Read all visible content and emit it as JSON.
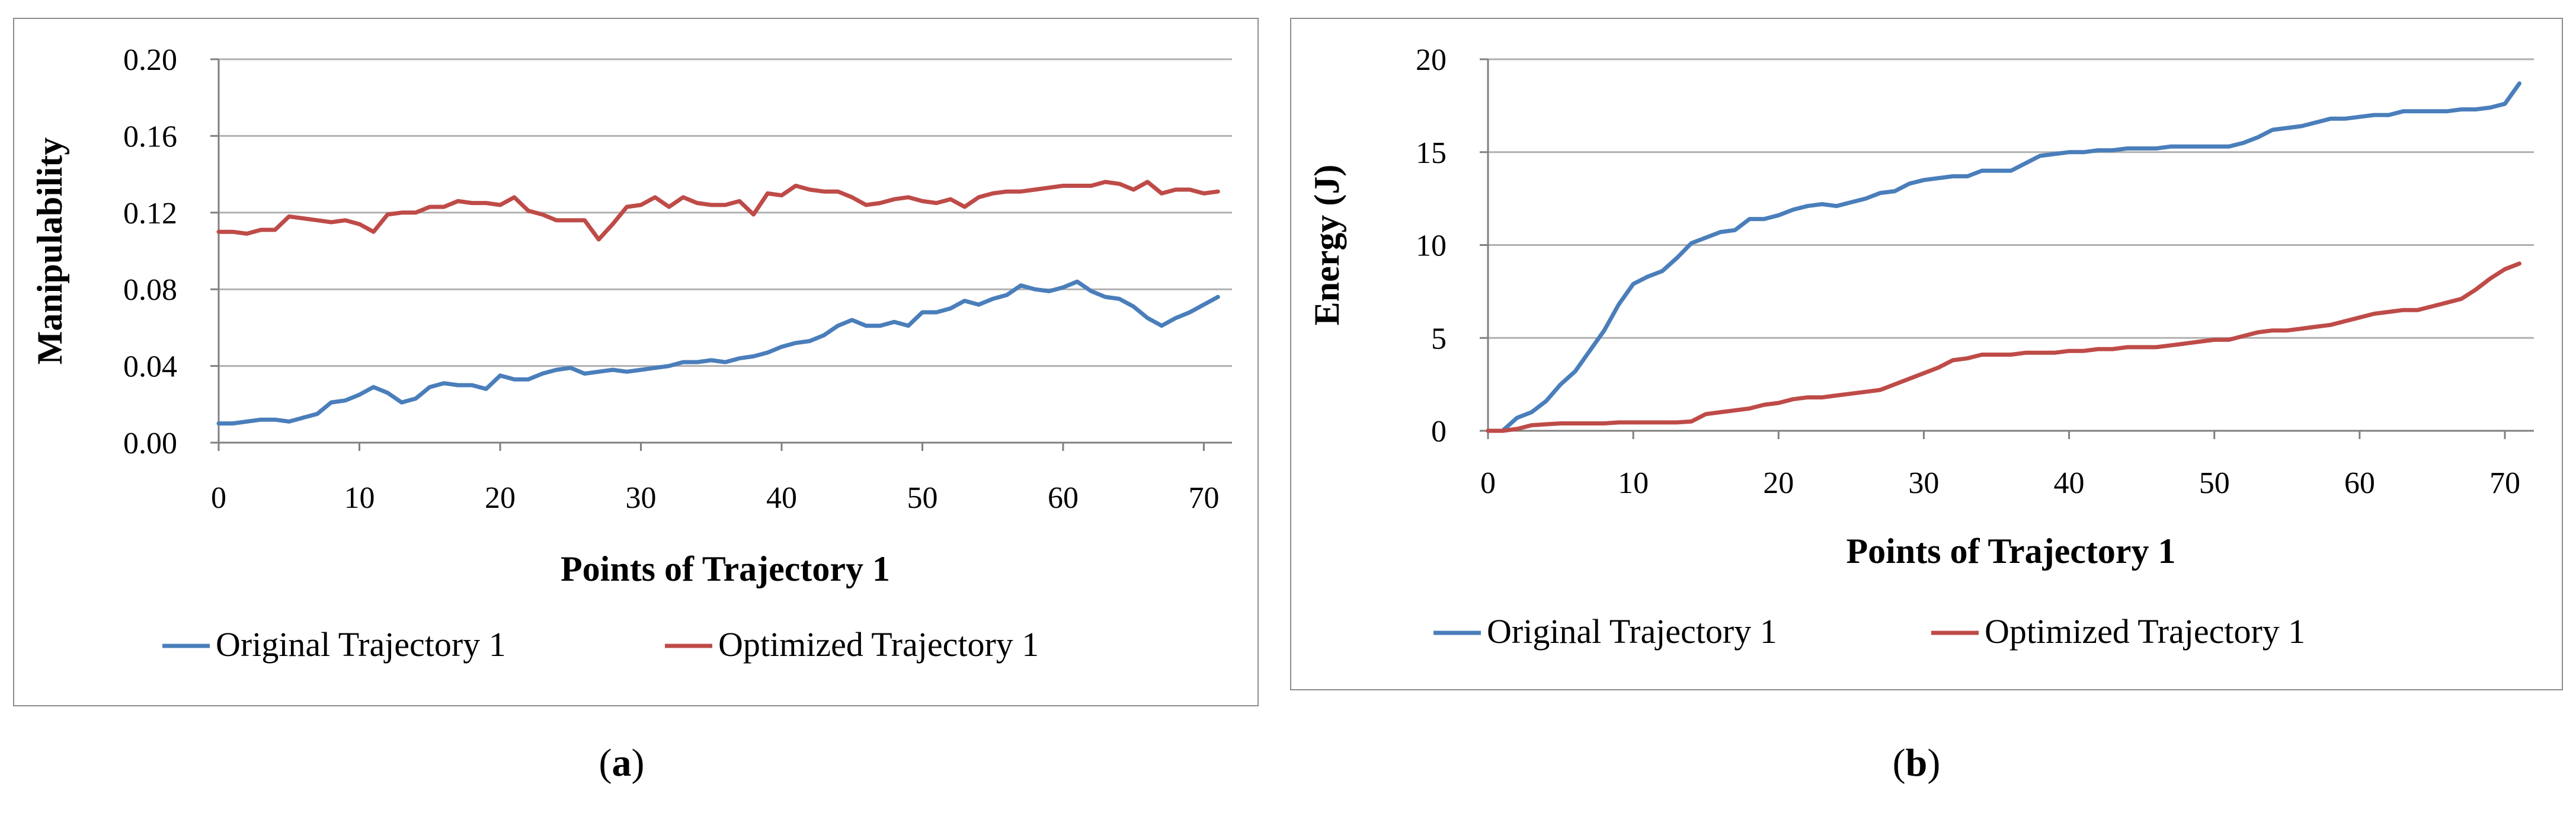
{
  "colors": {
    "original": "#4a7ebb",
    "optimized": "#be4b48",
    "grid": "#b0b0b0",
    "axis": "#808080"
  },
  "captions": {
    "a": "a",
    "b": "b"
  },
  "chart_data": [
    {
      "id": "a",
      "type": "line",
      "title": "",
      "xlabel": "Points of Trajectory 1",
      "ylabel": "Manipulability",
      "xlim": [
        0,
        72
      ],
      "ylim": [
        0,
        0.2
      ],
      "xticks": [
        0,
        10,
        20,
        30,
        40,
        50,
        60,
        70
      ],
      "xtick_labels": [
        "0",
        "10",
        "20",
        "30",
        "40",
        "50",
        "60",
        "70"
      ],
      "yticks": [
        0,
        0.04,
        0.08,
        0.12,
        0.16,
        0.2
      ],
      "ytick_labels": [
        "0.00",
        "0.04",
        "0.08",
        "0.12",
        "0.16",
        "0.20"
      ],
      "grid": "horizontal",
      "legend_position": "bottom",
      "series": [
        {
          "name": "Original Trajectory 1",
          "color": "#4a7ebb",
          "x": [
            0,
            1,
            2,
            3,
            4,
            5,
            6,
            7,
            8,
            9,
            10,
            11,
            12,
            13,
            14,
            15,
            16,
            17,
            18,
            19,
            20,
            21,
            22,
            23,
            24,
            25,
            26,
            27,
            28,
            29,
            30,
            31,
            32,
            33,
            34,
            35,
            36,
            37,
            38,
            39,
            40,
            41,
            42,
            43,
            44,
            45,
            46,
            47,
            48,
            49,
            50,
            51,
            52,
            53,
            54,
            55,
            56,
            57,
            58,
            59,
            60,
            61,
            62,
            63,
            64,
            65,
            66,
            67,
            68,
            69,
            70,
            71
          ],
          "values": [
            0.01,
            0.01,
            0.011,
            0.012,
            0.012,
            0.011,
            0.013,
            0.015,
            0.021,
            0.022,
            0.025,
            0.029,
            0.026,
            0.021,
            0.023,
            0.029,
            0.031,
            0.03,
            0.03,
            0.028,
            0.035,
            0.033,
            0.033,
            0.036,
            0.038,
            0.039,
            0.036,
            0.037,
            0.038,
            0.037,
            0.038,
            0.039,
            0.04,
            0.042,
            0.042,
            0.043,
            0.042,
            0.044,
            0.045,
            0.047,
            0.05,
            0.052,
            0.053,
            0.056,
            0.061,
            0.064,
            0.061,
            0.061,
            0.063,
            0.061,
            0.068,
            0.068,
            0.07,
            0.074,
            0.072,
            0.075,
            0.077,
            0.082,
            0.08,
            0.079,
            0.081,
            0.084,
            0.079,
            0.076,
            0.075,
            0.071,
            0.065,
            0.061,
            0.065,
            0.068,
            0.072,
            0.076
          ]
        },
        {
          "name": "Optimized Trajectory 1",
          "color": "#be4b48",
          "x": [
            0,
            1,
            2,
            3,
            4,
            5,
            6,
            7,
            8,
            9,
            10,
            11,
            12,
            13,
            14,
            15,
            16,
            17,
            18,
            19,
            20,
            21,
            22,
            23,
            24,
            25,
            26,
            27,
            28,
            29,
            30,
            31,
            32,
            33,
            34,
            35,
            36,
            37,
            38,
            39,
            40,
            41,
            42,
            43,
            44,
            45,
            46,
            47,
            48,
            49,
            50,
            51,
            52,
            53,
            54,
            55,
            56,
            57,
            58,
            59,
            60,
            61,
            62,
            63,
            64,
            65,
            66,
            67,
            68,
            69,
            70,
            71
          ],
          "values": [
            0.11,
            0.11,
            0.109,
            0.111,
            0.111,
            0.118,
            0.117,
            0.116,
            0.115,
            0.116,
            0.114,
            0.11,
            0.119,
            0.12,
            0.12,
            0.123,
            0.123,
            0.126,
            0.125,
            0.125,
            0.124,
            0.128,
            0.121,
            0.119,
            0.116,
            0.116,
            0.116,
            0.106,
            0.114,
            0.123,
            0.124,
            0.128,
            0.123,
            0.128,
            0.125,
            0.124,
            0.124,
            0.126,
            0.119,
            0.13,
            0.129,
            0.134,
            0.132,
            0.131,
            0.131,
            0.128,
            0.124,
            0.125,
            0.127,
            0.128,
            0.126,
            0.125,
            0.127,
            0.123,
            0.128,
            0.13,
            0.131,
            0.131,
            0.132,
            0.133,
            0.134,
            0.134,
            0.134,
            0.136,
            0.135,
            0.132,
            0.136,
            0.13,
            0.132,
            0.132,
            0.13,
            0.131
          ]
        }
      ]
    },
    {
      "id": "b",
      "type": "line",
      "title": "",
      "xlabel": "Points of Trajectory 1",
      "ylabel": "Energy (J)",
      "xlim": [
        0,
        72
      ],
      "ylim": [
        0,
        20
      ],
      "xticks": [
        0,
        10,
        20,
        30,
        40,
        50,
        60,
        70
      ],
      "xtick_labels": [
        "0",
        "10",
        "20",
        "30",
        "40",
        "50",
        "60",
        "70"
      ],
      "yticks": [
        0,
        5,
        10,
        15,
        20
      ],
      "ytick_labels": [
        "0",
        "5",
        "10",
        "15",
        "20"
      ],
      "grid": "horizontal",
      "legend_position": "bottom",
      "series": [
        {
          "name": "Original Trajectory 1",
          "color": "#4a7ebb",
          "x": [
            0,
            1,
            2,
            3,
            4,
            5,
            6,
            7,
            8,
            9,
            10,
            11,
            12,
            13,
            14,
            15,
            16,
            17,
            18,
            19,
            20,
            21,
            22,
            23,
            24,
            25,
            26,
            27,
            28,
            29,
            30,
            31,
            32,
            33,
            34,
            35,
            36,
            37,
            38,
            39,
            40,
            41,
            42,
            43,
            44,
            45,
            46,
            47,
            48,
            49,
            50,
            51,
            52,
            53,
            54,
            55,
            56,
            57,
            58,
            59,
            60,
            61,
            62,
            63,
            64,
            65,
            66,
            67,
            68,
            69,
            70,
            71
          ],
          "values": [
            0,
            0,
            0.7,
            1.0,
            1.6,
            2.5,
            3.2,
            4.3,
            5.4,
            6.8,
            7.9,
            8.3,
            8.6,
            9.3,
            10.1,
            10.4,
            10.7,
            10.8,
            11.4,
            11.4,
            11.6,
            11.9,
            12.1,
            12.2,
            12.1,
            12.3,
            12.5,
            12.8,
            12.9,
            13.3,
            13.5,
            13.6,
            13.7,
            13.7,
            14.0,
            14.0,
            14.0,
            14.4,
            14.8,
            14.9,
            15.0,
            15.0,
            15.1,
            15.1,
            15.2,
            15.2,
            15.2,
            15.3,
            15.3,
            15.3,
            15.3,
            15.3,
            15.5,
            15.8,
            16.2,
            16.3,
            16.4,
            16.6,
            16.8,
            16.8,
            16.9,
            17.0,
            17.0,
            17.2,
            17.2,
            17.2,
            17.2,
            17.3,
            17.3,
            17.4,
            17.6,
            18.7
          ]
        },
        {
          "name": "Optimized Trajectory 1",
          "color": "#be4b48",
          "x": [
            0,
            1,
            2,
            3,
            4,
            5,
            6,
            7,
            8,
            9,
            10,
            11,
            12,
            13,
            14,
            15,
            16,
            17,
            18,
            19,
            20,
            21,
            22,
            23,
            24,
            25,
            26,
            27,
            28,
            29,
            30,
            31,
            32,
            33,
            34,
            35,
            36,
            37,
            38,
            39,
            40,
            41,
            42,
            43,
            44,
            45,
            46,
            47,
            48,
            49,
            50,
            51,
            52,
            53,
            54,
            55,
            56,
            57,
            58,
            59,
            60,
            61,
            62,
            63,
            64,
            65,
            66,
            67,
            68,
            69,
            70,
            71
          ],
          "values": [
            0,
            0,
            0.1,
            0.3,
            0.35,
            0.4,
            0.4,
            0.4,
            0.4,
            0.45,
            0.45,
            0.45,
            0.45,
            0.45,
            0.5,
            0.9,
            1.0,
            1.1,
            1.2,
            1.4,
            1.5,
            1.7,
            1.8,
            1.8,
            1.9,
            2.0,
            2.1,
            2.2,
            2.5,
            2.8,
            3.1,
            3.4,
            3.8,
            3.9,
            4.1,
            4.1,
            4.1,
            4.2,
            4.2,
            4.2,
            4.3,
            4.3,
            4.4,
            4.4,
            4.5,
            4.5,
            4.5,
            4.6,
            4.7,
            4.8,
            4.9,
            4.9,
            5.1,
            5.3,
            5.4,
            5.4,
            5.5,
            5.6,
            5.7,
            5.9,
            6.1,
            6.3,
            6.4,
            6.5,
            6.5,
            6.7,
            6.9,
            7.1,
            7.6,
            8.2,
            8.7,
            9.0
          ]
        }
      ]
    }
  ]
}
